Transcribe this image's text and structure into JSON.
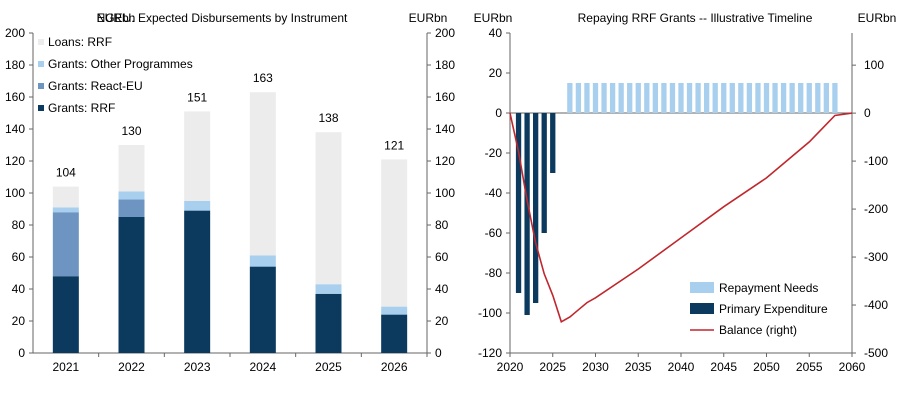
{
  "colors": {
    "loans_rrf": "#ececec",
    "grants_other": "#a8d0ee",
    "grants_react": "#6e95c1",
    "grants_rrf": "#0b3a5e",
    "repayment": "#a8d0ee",
    "primary": "#0b3a5e",
    "balance": "#c0272d",
    "axis": "#666666"
  },
  "chart_data": [
    {
      "type": "bar",
      "stacked": true,
      "title": "NGEU: Expected Disbursements by Instrument",
      "ylabel_left": "EURbn",
      "ylabel_right": "EURbn",
      "ylim": [
        0,
        200
      ],
      "yticks": [
        "0",
        "20",
        "40",
        "60",
        "80",
        "100",
        "120",
        "140",
        "160",
        "180",
        "200"
      ],
      "categories": [
        "2021",
        "2022",
        "2023",
        "2024",
        "2025",
        "2026"
      ],
      "series": [
        {
          "name": "Grants: RRF",
          "values": [
            48,
            85,
            89,
            54,
            37,
            24
          ]
        },
        {
          "name": "Grants: React-EU",
          "values": [
            40,
            11,
            0,
            0,
            0,
            0
          ]
        },
        {
          "name": "Grants: Other Programmes",
          "values": [
            3,
            5,
            6,
            7,
            6,
            5
          ]
        },
        {
          "name": "Loans: RRF",
          "values": [
            13,
            29,
            56,
            102,
            95,
            92
          ]
        }
      ],
      "totals": [
        "104",
        "130",
        "151",
        "163",
        "138",
        "121"
      ],
      "legend": [
        "Loans: RRF",
        "Grants: Other Programmes",
        "Grants: React-EU",
        "Grants: RRF"
      ]
    },
    {
      "type": "bar+line",
      "title": "Repaying RRF Grants -- Illustrative Timeline",
      "ylabel_left": "EURbn",
      "ylabel_right": "EURbn",
      "ylim_left": [
        -120,
        40
      ],
      "ylim_right": [
        -500,
        167
      ],
      "yticks_left": [
        "-120",
        "-100",
        "-80",
        "-60",
        "-40",
        "-20",
        "0",
        "20",
        "40"
      ],
      "yticks_right": [
        "-500",
        "-400",
        "-300",
        "-200",
        "-100",
        "0",
        "100"
      ],
      "xlim": [
        2020,
        2060
      ],
      "xticks": [
        "2020",
        "2025",
        "2030",
        "2035",
        "2040",
        "2045",
        "2050",
        "2055",
        "2060"
      ],
      "primary_expenditure": {
        "name": "Primary Expenditure",
        "x": [
          2021,
          2022,
          2023,
          2024,
          2025
        ],
        "values": [
          -90,
          -101,
          -95,
          -60,
          -30
        ]
      },
      "repayment_needs": {
        "name": "Repayment Needs",
        "x": [
          2027,
          2028,
          2029,
          2030,
          2031,
          2032,
          2033,
          2034,
          2035,
          2036,
          2037,
          2038,
          2039,
          2040,
          2041,
          2042,
          2043,
          2044,
          2045,
          2046,
          2047,
          2048,
          2049,
          2050,
          2051,
          2052,
          2053,
          2054,
          2055,
          2056,
          2057,
          2058
        ],
        "values": [
          15,
          15,
          15,
          15,
          15,
          15,
          15,
          15,
          15,
          15,
          15,
          15,
          15,
          15,
          15,
          15,
          15,
          15,
          15,
          15,
          15,
          15,
          15,
          15,
          15,
          15,
          15,
          15,
          15,
          15,
          15,
          15
        ]
      },
      "balance": {
        "name": "Balance (right)",
        "x": [
          2020,
          2021,
          2022,
          2023,
          2024,
          2025,
          2026,
          2027,
          2028,
          2029,
          2030,
          2035,
          2040,
          2045,
          2050,
          2055,
          2058,
          2060
        ],
        "values": [
          0,
          -80,
          -182,
          -270,
          -335,
          -380,
          -435,
          -425,
          -410,
          -395,
          -385,
          -325,
          -260,
          -195,
          -135,
          -60,
          -5,
          0
        ]
      },
      "legend": [
        "Repayment Needs",
        "Primary Expenditure",
        "Balance (right)"
      ]
    }
  ]
}
